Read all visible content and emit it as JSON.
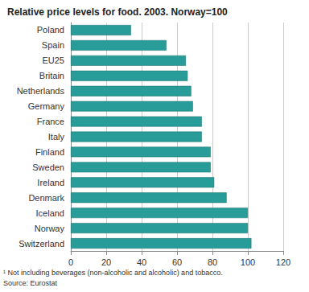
{
  "chart_data": {
    "type": "bar",
    "orientation": "horizontal",
    "title": "Relative price levels for food. 2003. Norway=100",
    "footnote": "¹ Not including beverages (non-alcoholic and alcoholic) and tobacco.",
    "source": "Source: Eurostat",
    "categories": [
      "Poland",
      "Spain",
      "EU25",
      "Britain",
      "Netherlands",
      "Germany",
      "France",
      "Italy",
      "Finland",
      "Sweden",
      "Ireland",
      "Denmark",
      "Iceland",
      "Norway",
      "Switzerland"
    ],
    "values": [
      34,
      54,
      65,
      66,
      68,
      69,
      74,
      74,
      79,
      79,
      81,
      88,
      100,
      100,
      102
    ],
    "color": "#279c98",
    "xlim": [
      0,
      120
    ],
    "xticks": [
      0,
      20,
      40,
      60,
      80,
      100,
      120
    ],
    "grid": true
  }
}
